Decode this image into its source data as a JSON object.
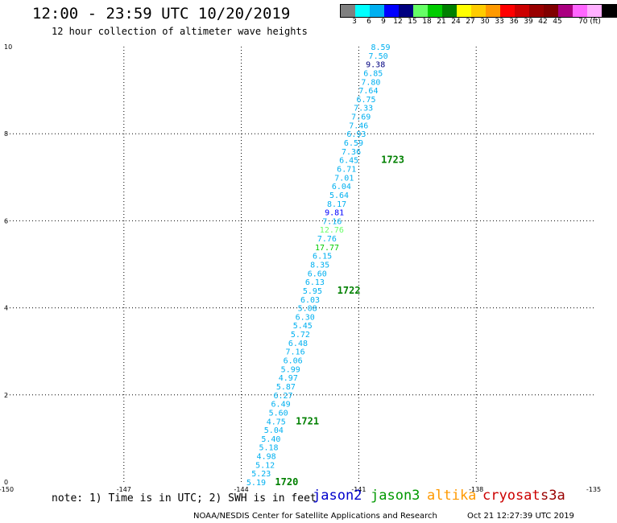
{
  "header": {
    "title": "12:00 - 23:59 UTC 10/20/2019",
    "subtitle": "12 hour collection of altimeter wave heights"
  },
  "legend": {
    "colors": [
      "#808080",
      "#00ffff",
      "#00b0f0",
      "#0000ff",
      "#000080",
      "#66ff66",
      "#00cc00",
      "#008000",
      "#ffff00",
      "#ffcc00",
      "#ff9900",
      "#ff0000",
      "#cc0000",
      "#990000",
      "#800000",
      "#aa0080",
      "#ff66ff",
      "#ffb0ff",
      "#000000"
    ],
    "labels": [
      "3",
      "6",
      "9",
      "12",
      "15",
      "18",
      "21",
      "24",
      "27",
      "30",
      "33",
      "36",
      "39",
      "42",
      "45",
      "70 (ft)"
    ]
  },
  "chart_data": {
    "type": "scatter",
    "title": "12 hour collection of altimeter wave heights",
    "xlim": [
      -150,
      -135
    ],
    "ylim": [
      0,
      10
    ],
    "x_ticks": [
      "-150",
      "-147",
      "-144",
      "-141",
      "-138",
      "-135"
    ],
    "x_tick_values": [
      -150,
      -147,
      -144,
      -141,
      -138,
      -135
    ],
    "y_ticks": [
      "0",
      "2",
      "4",
      "6",
      "8",
      "10"
    ],
    "y_tick_values": [
      0,
      2,
      4,
      6,
      8,
      10
    ],
    "grid": true,
    "series": [
      {
        "name": "jason3",
        "color": "#00cc00",
        "points": [
          {
            "x": -143.87,
            "y": 0.0,
            "label": "5.19",
            "color": "#00b0f0"
          },
          {
            "x": -143.74,
            "y": 0.2,
            "label": "5.23",
            "color": "#00b0f0"
          },
          {
            "x": -143.64,
            "y": 0.4,
            "label": "5.12",
            "color": "#00b0f0"
          },
          {
            "x": -143.61,
            "y": 0.6,
            "label": "4.98",
            "color": "#00b0f0"
          },
          {
            "x": -143.55,
            "y": 0.8,
            "label": "5.18",
            "color": "#00b0f0"
          },
          {
            "x": -143.49,
            "y": 1.0,
            "label": "5.40",
            "color": "#00b0f0"
          },
          {
            "x": -143.42,
            "y": 1.2,
            "label": "5.04",
            "color": "#00b0f0"
          },
          {
            "x": -143.36,
            "y": 1.4,
            "label": "4.75",
            "color": "#00b0f0"
          },
          {
            "x": -143.3,
            "y": 1.6,
            "label": "5.60",
            "color": "#00b0f0"
          },
          {
            "x": -143.24,
            "y": 1.8,
            "label": "6.49",
            "color": "#00b0f0"
          },
          {
            "x": -143.18,
            "y": 2.0,
            "label": "6.27",
            "color": "#00b0f0"
          },
          {
            "x": -143.11,
            "y": 2.2,
            "label": "5.87",
            "color": "#00b0f0"
          },
          {
            "x": -143.05,
            "y": 2.4,
            "label": "4.97",
            "color": "#00b0f0"
          },
          {
            "x": -142.99,
            "y": 2.6,
            "label": "5.99",
            "color": "#00b0f0"
          },
          {
            "x": -142.93,
            "y": 2.8,
            "label": "6.06",
            "color": "#00b0f0"
          },
          {
            "x": -142.87,
            "y": 3.0,
            "label": "7.16",
            "color": "#00b0f0"
          },
          {
            "x": -142.8,
            "y": 3.2,
            "label": "6.48",
            "color": "#00b0f0"
          },
          {
            "x": -142.74,
            "y": 3.4,
            "label": "5.72",
            "color": "#00b0f0"
          },
          {
            "x": -142.68,
            "y": 3.6,
            "label": "5.45",
            "color": "#00b0f0"
          },
          {
            "x": -142.62,
            "y": 3.8,
            "label": "6.30",
            "color": "#00b0f0"
          },
          {
            "x": -142.56,
            "y": 4.0,
            "label": "5.08",
            "color": "#00b0f0"
          },
          {
            "x": -142.49,
            "y": 4.2,
            "label": "6.03",
            "color": "#00b0f0"
          },
          {
            "x": -142.43,
            "y": 4.4,
            "label": "5.95",
            "color": "#00b0f0"
          },
          {
            "x": -142.37,
            "y": 4.6,
            "label": "6.13",
            "color": "#00b0f0"
          },
          {
            "x": -142.31,
            "y": 4.8,
            "label": "6.60",
            "color": "#00b0f0"
          },
          {
            "x": -142.24,
            "y": 5.0,
            "label": "8.35",
            "color": "#00b0f0"
          },
          {
            "x": -142.18,
            "y": 5.2,
            "label": "6.15",
            "color": "#00b0f0"
          },
          {
            "x": -142.12,
            "y": 5.4,
            "label": "17.77",
            "color": "#00cc00"
          },
          {
            "x": -142.06,
            "y": 5.6,
            "label": "7.76",
            "color": "#00b0f0"
          },
          {
            "x": -142.0,
            "y": 5.8,
            "label": "12.76",
            "color": "#66ff66"
          },
          {
            "x": -141.93,
            "y": 6.0,
            "label": "7.16",
            "color": "#00b0f0"
          },
          {
            "x": -141.87,
            "y": 6.2,
            "label": "9.81",
            "color": "#0000ff"
          },
          {
            "x": -141.81,
            "y": 6.4,
            "label": "8.17",
            "color": "#00b0f0"
          },
          {
            "x": -141.75,
            "y": 6.6,
            "label": "5.64",
            "color": "#00b0f0"
          },
          {
            "x": -141.69,
            "y": 6.8,
            "label": "6.04",
            "color": "#00b0f0"
          },
          {
            "x": -141.62,
            "y": 7.0,
            "label": "7.01",
            "color": "#00b0f0"
          },
          {
            "x": -141.56,
            "y": 7.2,
            "label": "6.71",
            "color": "#00b0f0"
          },
          {
            "x": -141.5,
            "y": 7.4,
            "label": "6.45",
            "color": "#00b0f0"
          },
          {
            "x": -141.44,
            "y": 7.6,
            "label": "7.36",
            "color": "#00b0f0"
          },
          {
            "x": -141.38,
            "y": 7.8,
            "label": "6.59",
            "color": "#00b0f0"
          },
          {
            "x": -141.31,
            "y": 8.0,
            "label": "6.93",
            "color": "#00b0f0"
          },
          {
            "x": -141.25,
            "y": 8.2,
            "label": "7.46",
            "color": "#00b0f0"
          },
          {
            "x": -141.19,
            "y": 8.4,
            "label": "7.69",
            "color": "#00b0f0"
          },
          {
            "x": -141.13,
            "y": 8.6,
            "label": "7.33",
            "color": "#00b0f0"
          },
          {
            "x": -141.06,
            "y": 8.8,
            "label": "6.75",
            "color": "#00b0f0"
          },
          {
            "x": -141.0,
            "y": 9.0,
            "label": "7.64",
            "color": "#00b0f0"
          },
          {
            "x": -140.94,
            "y": 9.2,
            "label": "7.80",
            "color": "#00b0f0"
          },
          {
            "x": -140.88,
            "y": 9.4,
            "label": "6.85",
            "color": "#00b0f0"
          },
          {
            "x": -140.82,
            "y": 9.6,
            "label": "9.38",
            "color": "#000080"
          },
          {
            "x": -140.75,
            "y": 9.8,
            "label": "7.50",
            "color": "#00b0f0"
          },
          {
            "x": -140.69,
            "y": 10.0,
            "label": "8.59",
            "color": "#00b0f0"
          }
        ]
      }
    ],
    "annotations": [
      {
        "text": "1720",
        "x": -143.14,
        "y": 0.0,
        "color": "#008000"
      },
      {
        "text": "1721",
        "x": -142.61,
        "y": 1.4,
        "color": "#008000"
      },
      {
        "text": "1722",
        "x": -141.55,
        "y": 4.4,
        "color": "#008000"
      },
      {
        "text": "1723",
        "x": -140.43,
        "y": 7.4,
        "color": "#008000"
      }
    ]
  },
  "note": "note: 1) Time is in UTC; 2) SWH is in feet",
  "satellites": [
    {
      "name": "jason2",
      "color": "#0000cc"
    },
    {
      "name": "jason3",
      "color": "#009900"
    },
    {
      "name": "altika",
      "color": "#ff9900"
    },
    {
      "name": "cryosat",
      "color": "#cc0000"
    },
    {
      "name": "s3a",
      "color": "#990000"
    }
  ],
  "footer": {
    "credit": "NOAA/NESDIS Center for Satellite Applications and Research",
    "timestamp": "Oct 21 12:27:39 UTC 2019"
  }
}
